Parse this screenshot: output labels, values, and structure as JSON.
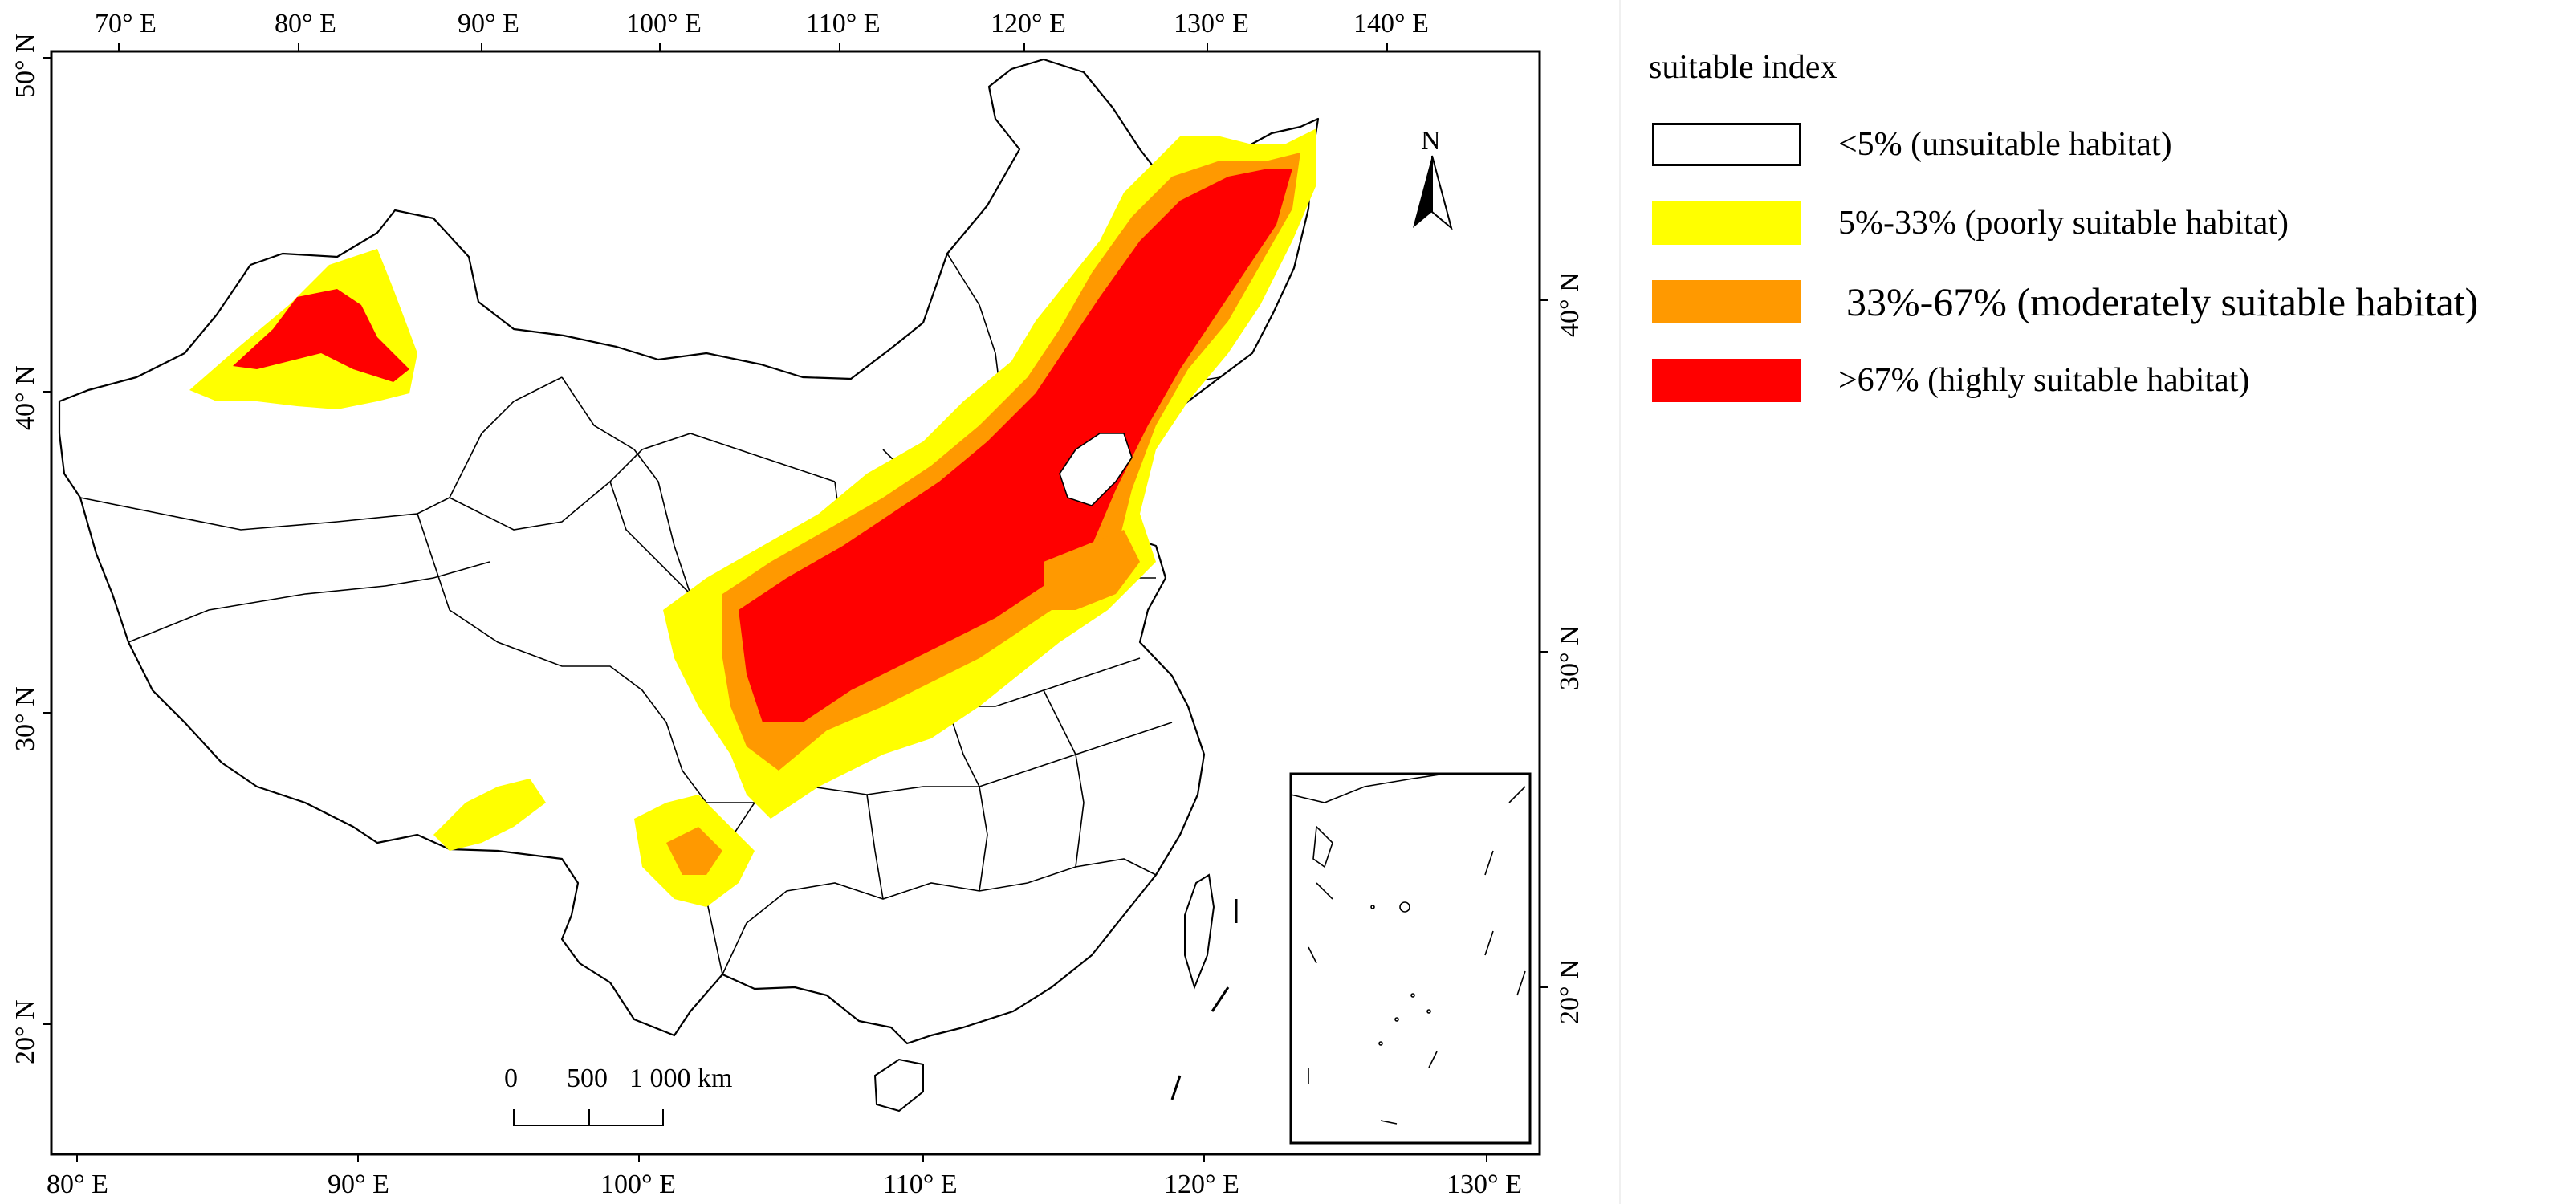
{
  "legend": {
    "title": "suitable index",
    "items": [
      {
        "label": "<5% (unsuitable habitat)",
        "color": "#ffffff"
      },
      {
        "label": "5%-33% (poorly suitable habitat)",
        "color": "#ffff00"
      },
      {
        "label": "33%-67% (moderately suitable habitat)",
        "color": "#ff9900"
      },
      {
        "label": ">67% (highly suitable habitat)",
        "color": "#ff0000"
      }
    ]
  },
  "axes": {
    "top_ticks": [
      "70° E",
      "80° E",
      "90° E",
      "100° E",
      "110° E",
      "120° E",
      "130° E",
      "140° E"
    ],
    "bottom_ticks": [
      "80° E",
      "90° E",
      "100° E",
      "110° E",
      "120° E",
      "130° E"
    ],
    "left_ticks": [
      "50° N",
      "40° N",
      "30° N",
      "20° N"
    ],
    "right_ticks": [
      "40° N",
      "30° N",
      "20° N"
    ]
  },
  "north_arrow": {
    "label": "N"
  },
  "scale_bar": {
    "labels": [
      "0",
      "500",
      "1 000 km"
    ]
  },
  "colors": {
    "frame": "#000000",
    "boundary": "#000000"
  }
}
